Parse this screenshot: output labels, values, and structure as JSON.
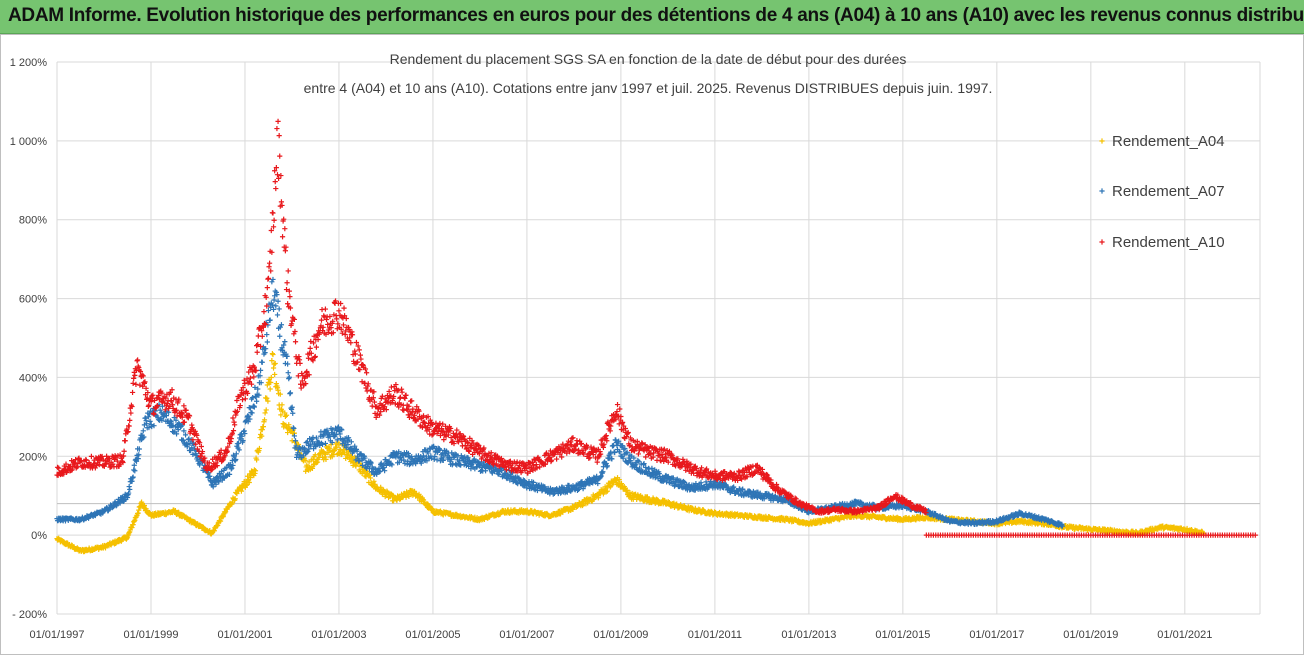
{
  "banner": {
    "title": "ADAM Informe. Evolution historique des performances en euros pour des détentions de 4 ans (A04) à 10 ans (A10) avec les revenus connus distribués"
  },
  "chart_data": {
    "type": "scatter",
    "title_lines": [
      "Rendement du placement SGS SA en fonction de la date de début pour des durées",
      "entre 4 (A04) et 10 ans (A10).  Cotations entre janv 1997 et juil. 2025. Revenus DISTRIBUES depuis juin. 1997."
    ],
    "x_ticks": [
      "01/01/1997",
      "01/01/1999",
      "01/01/2001",
      "01/01/2003",
      "01/01/2005",
      "01/01/2007",
      "01/01/2009",
      "01/01/2011",
      "01/01/2013",
      "01/01/2015",
      "01/01/2017",
      "01/01/2019",
      "01/01/2021"
    ],
    "y_ticks": [
      "1 200%",
      "1 000%",
      "800%",
      "600%",
      "400%",
      "200%",
      "0%",
      "- 200%"
    ],
    "ylim": [
      -200,
      1200
    ],
    "xlim": [
      1997.0,
      2022.6
    ],
    "grid": true,
    "legend_position": "right",
    "series": [
      {
        "name": "Rendement_A04",
        "color": "#f5c000",
        "x_end": 2021.4,
        "points": [
          [
            1997.0,
            -10
          ],
          [
            1997.5,
            -40
          ],
          [
            1998.0,
            -30
          ],
          [
            1998.5,
            -5
          ],
          [
            1998.8,
            80
          ],
          [
            1999.0,
            50
          ],
          [
            1999.5,
            60
          ],
          [
            2000.0,
            25
          ],
          [
            2000.3,
            5
          ],
          [
            2000.8,
            100
          ],
          [
            2001.2,
            160
          ],
          [
            2001.4,
            300
          ],
          [
            2001.6,
            450
          ],
          [
            2001.8,
            300
          ],
          [
            2002.0,
            260
          ],
          [
            2002.3,
            170
          ],
          [
            2002.6,
            200
          ],
          [
            2003.0,
            225
          ],
          [
            2003.4,
            180
          ],
          [
            2003.8,
            120
          ],
          [
            2004.2,
            90
          ],
          [
            2004.6,
            110
          ],
          [
            2005.0,
            60
          ],
          [
            2005.5,
            50
          ],
          [
            2006.0,
            40
          ],
          [
            2006.5,
            60
          ],
          [
            2007.0,
            60
          ],
          [
            2007.5,
            50
          ],
          [
            2008.0,
            70
          ],
          [
            2008.5,
            100
          ],
          [
            2008.9,
            140
          ],
          [
            2009.2,
            100
          ],
          [
            2009.6,
            90
          ],
          [
            2010.0,
            80
          ],
          [
            2010.5,
            65
          ],
          [
            2011.0,
            55
          ],
          [
            2011.5,
            50
          ],
          [
            2012.0,
            45
          ],
          [
            2012.5,
            40
          ],
          [
            2013.0,
            30
          ],
          [
            2013.5,
            40
          ],
          [
            2014.0,
            50
          ],
          [
            2014.5,
            45
          ],
          [
            2015.0,
            40
          ],
          [
            2015.5,
            45
          ],
          [
            2016.0,
            40
          ],
          [
            2016.5,
            35
          ],
          [
            2017.0,
            30
          ],
          [
            2017.5,
            35
          ],
          [
            2018.0,
            30
          ],
          [
            2018.5,
            20
          ],
          [
            2019.0,
            15
          ],
          [
            2019.5,
            10
          ],
          [
            2020.0,
            5
          ],
          [
            2020.5,
            20
          ],
          [
            2021.0,
            15
          ],
          [
            2021.4,
            5
          ]
        ]
      },
      {
        "name": "Rendement_A07",
        "color": "#2e75b6",
        "x_end": 2018.4,
        "points": [
          [
            1997.0,
            40
          ],
          [
            1997.5,
            40
          ],
          [
            1998.0,
            60
          ],
          [
            1998.5,
            100
          ],
          [
            1998.9,
            290
          ],
          [
            1999.2,
            310
          ],
          [
            1999.6,
            270
          ],
          [
            2000.0,
            200
          ],
          [
            2000.3,
            130
          ],
          [
            2000.7,
            170
          ],
          [
            2001.0,
            270
          ],
          [
            2001.3,
            380
          ],
          [
            2001.6,
            620
          ],
          [
            2001.9,
            420
          ],
          [
            2002.1,
            200
          ],
          [
            2002.5,
            240
          ],
          [
            2003.0,
            260
          ],
          [
            2003.4,
            200
          ],
          [
            2003.8,
            160
          ],
          [
            2004.2,
            200
          ],
          [
            2004.6,
            190
          ],
          [
            2005.0,
            210
          ],
          [
            2005.5,
            190
          ],
          [
            2006.0,
            175
          ],
          [
            2006.5,
            160
          ],
          [
            2007.0,
            130
          ],
          [
            2007.5,
            110
          ],
          [
            2008.0,
            120
          ],
          [
            2008.5,
            140
          ],
          [
            2008.9,
            230
          ],
          [
            2009.2,
            190
          ],
          [
            2009.6,
            160
          ],
          [
            2010.0,
            140
          ],
          [
            2010.5,
            120
          ],
          [
            2011.0,
            130
          ],
          [
            2011.5,
            110
          ],
          [
            2012.0,
            100
          ],
          [
            2012.5,
            90
          ],
          [
            2013.0,
            60
          ],
          [
            2013.5,
            70
          ],
          [
            2014.0,
            80
          ],
          [
            2014.5,
            70
          ],
          [
            2015.0,
            75
          ],
          [
            2015.5,
            60
          ],
          [
            2016.0,
            35
          ],
          [
            2016.5,
            30
          ],
          [
            2017.0,
            35
          ],
          [
            2017.5,
            55
          ],
          [
            2018.0,
            40
          ],
          [
            2018.4,
            25
          ]
        ]
      },
      {
        "name": "Rendement_A10",
        "color": "#e8181c",
        "x_end": 2015.5,
        "points": [
          [
            1997.0,
            160
          ],
          [
            1997.5,
            185
          ],
          [
            1998.0,
            185
          ],
          [
            1998.4,
            190
          ],
          [
            1998.7,
            430
          ],
          [
            1999.0,
            330
          ],
          [
            1999.4,
            350
          ],
          [
            1999.8,
            290
          ],
          [
            2000.2,
            170
          ],
          [
            2000.6,
            210
          ],
          [
            2000.9,
            350
          ],
          [
            2001.2,
            420
          ],
          [
            2001.5,
            620
          ],
          [
            2001.7,
            1000
          ],
          [
            2001.9,
            640
          ],
          [
            2002.2,
            380
          ],
          [
            2002.6,
            530
          ],
          [
            2003.0,
            570
          ],
          [
            2003.4,
            450
          ],
          [
            2003.8,
            320
          ],
          [
            2004.2,
            360
          ],
          [
            2004.6,
            310
          ],
          [
            2005.0,
            270
          ],
          [
            2005.5,
            250
          ],
          [
            2006.0,
            210
          ],
          [
            2006.5,
            180
          ],
          [
            2007.0,
            170
          ],
          [
            2007.5,
            200
          ],
          [
            2008.0,
            230
          ],
          [
            2008.5,
            200
          ],
          [
            2008.9,
            320
          ],
          [
            2009.2,
            230
          ],
          [
            2009.6,
            210
          ],
          [
            2010.0,
            200
          ],
          [
            2010.3,
            180
          ],
          [
            2010.7,
            160
          ],
          [
            2011.0,
            150
          ],
          [
            2011.5,
            150
          ],
          [
            2011.9,
            170
          ],
          [
            2012.3,
            120
          ],
          [
            2012.8,
            80
          ],
          [
            2013.2,
            60
          ],
          [
            2013.6,
            65
          ],
          [
            2014.0,
            60
          ],
          [
            2014.5,
            70
          ],
          [
            2014.8,
            100
          ],
          [
            2015.2,
            75
          ],
          [
            2015.5,
            60
          ]
        ],
        "zero_segment": [
          2015.5,
          2022.5
        ]
      }
    ]
  }
}
